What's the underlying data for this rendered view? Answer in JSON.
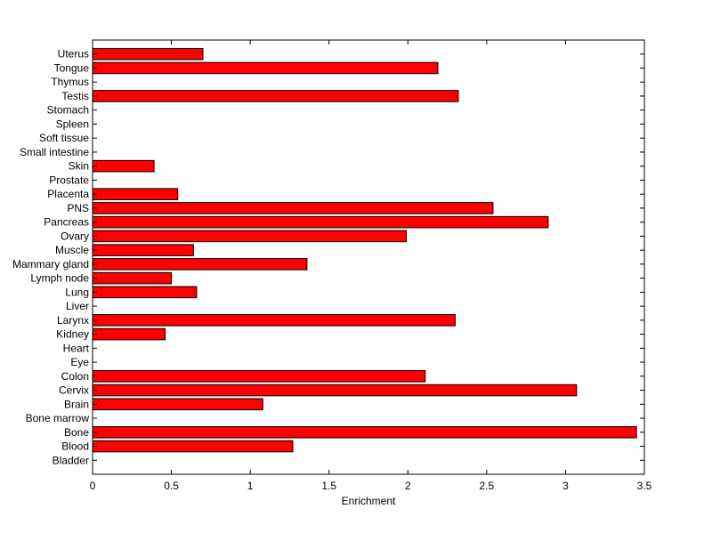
{
  "chart_data": {
    "type": "bar",
    "orientation": "horizontal",
    "categories": [
      "Bladder",
      "Blood",
      "Bone",
      "Bone marrow",
      "Brain",
      "Cervix",
      "Colon",
      "Eye",
      "Heart",
      "Kidney",
      "Larynx",
      "Liver",
      "Lung",
      "Lymph node",
      "Mammary gland",
      "Muscle",
      "Ovary",
      "Pancreas",
      "PNS",
      "Placenta",
      "Prostate",
      "Skin",
      "Small intestine",
      "Soft tissue",
      "Spleen",
      "Stomach",
      "Testis",
      "Thymus",
      "Tongue",
      "Uterus"
    ],
    "values": [
      0,
      1.27,
      3.45,
      0,
      1.08,
      3.07,
      2.11,
      0,
      0,
      0.46,
      2.3,
      0,
      0.66,
      0.5,
      1.36,
      0.64,
      1.99,
      2.89,
      2.54,
      0.54,
      0,
      0.39,
      0,
      0,
      0,
      0,
      2.32,
      0,
      2.19,
      0.7
    ],
    "title": "",
    "xlabel": "Enrichment",
    "ylabel": "",
    "xlim": [
      0,
      3.5
    ],
    "xticks": [
      "0",
      "0.5",
      "1",
      "1.5",
      "2",
      "2.5",
      "3",
      "3.5"
    ],
    "xtick_values": [
      0,
      0.5,
      1,
      1.5,
      2,
      2.5,
      3,
      3.5
    ],
    "grid": false,
    "bar_color": "#ff0000",
    "edge_color": "#000000"
  }
}
